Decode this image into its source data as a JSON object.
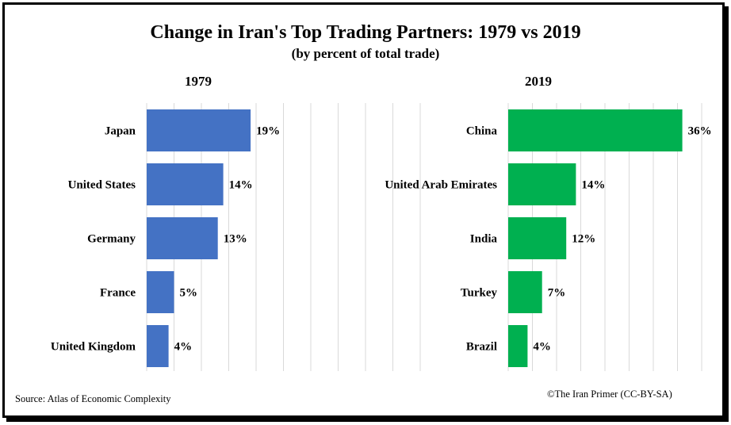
{
  "title": "Change in Iran's Top Trading Partners: 1979 vs 2019",
  "subtitle": "(by percent of total trade)",
  "source": "Source:  Atlas of Economic Complexity",
  "credit": "©The Iran Primer  (CC-BY-SA)",
  "colors": {
    "bar_1979": "#4472c4",
    "bar_2019": "#00b050",
    "grid": "#d9d9d9"
  },
  "chart_data": [
    {
      "type": "bar",
      "orientation": "horizontal",
      "title": "1979",
      "categories": [
        "Japan",
        "United States",
        "Germany",
        "France",
        "United Kingdom"
      ],
      "values": [
        19,
        14,
        13,
        5,
        4
      ],
      "data_labels": [
        "19%",
        "14%",
        "13%",
        "5%",
        "4%"
      ],
      "xlim": [
        0,
        50
      ],
      "grid": true
    },
    {
      "type": "bar",
      "orientation": "horizontal",
      "title": "2019",
      "categories": [
        "China",
        "United Arab Emirates",
        "India",
        "Turkey",
        "Brazil"
      ],
      "values": [
        36,
        14,
        12,
        7,
        4
      ],
      "data_labels": [
        "36%",
        "14%",
        "12%",
        "7%",
        "4%"
      ],
      "xlim": [
        0,
        40
      ],
      "grid": true
    }
  ]
}
